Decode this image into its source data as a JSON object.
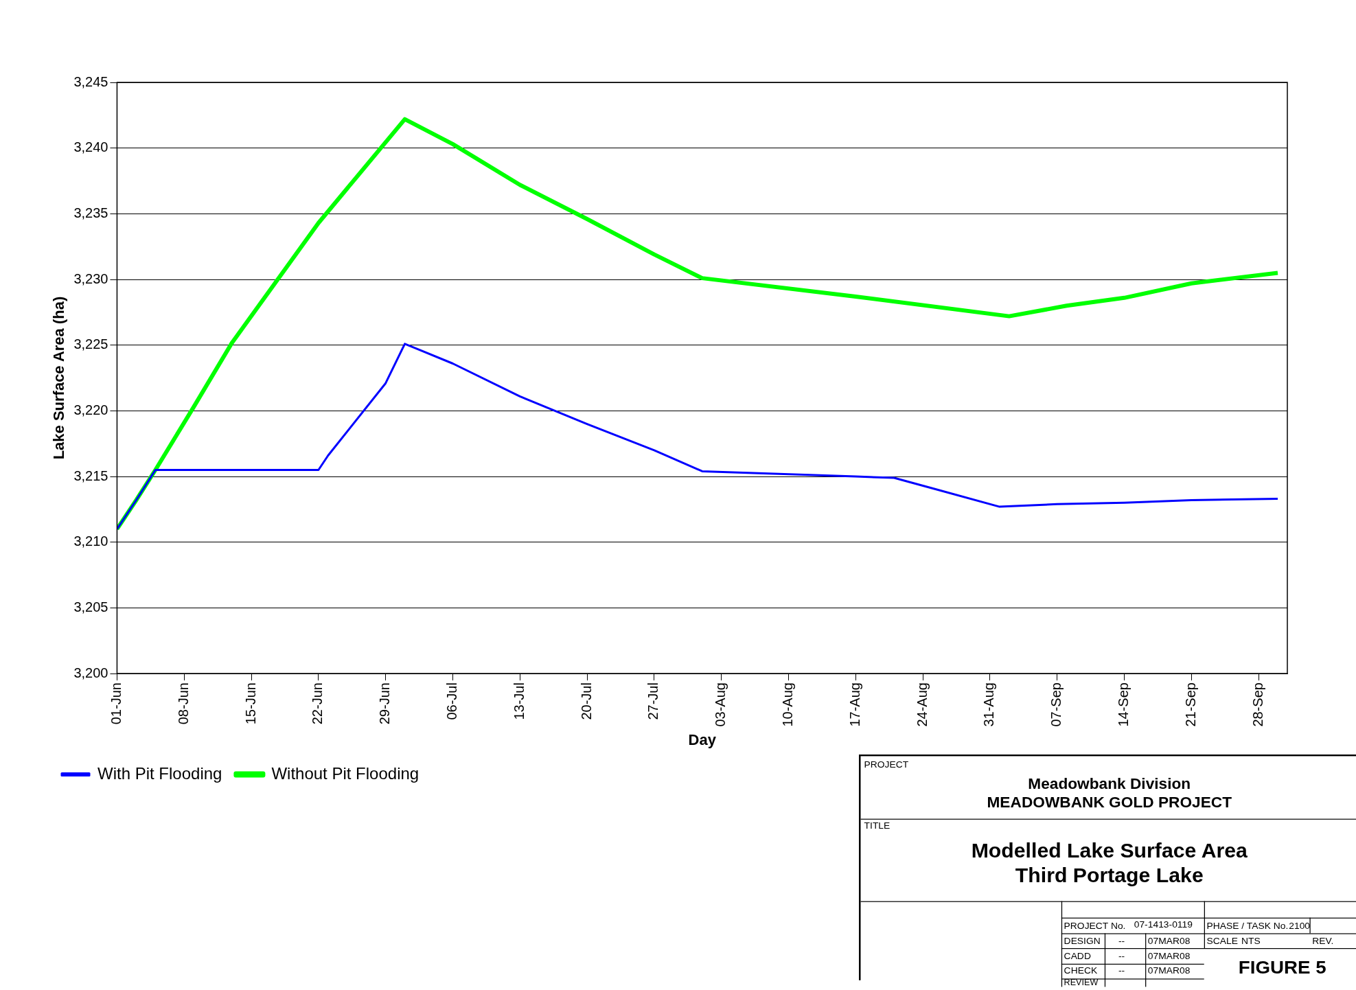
{
  "chart_data": {
    "type": "line",
    "xlabel": "Day",
    "ylabel": "Lake Surface Area (ha)",
    "xlim": [
      "--06-01",
      "--10-01"
    ],
    "xticks": [
      {
        "value": "--06-01",
        "label": "01-Jun"
      },
      {
        "value": "--06-08",
        "label": "08-Jun"
      },
      {
        "value": "--06-15",
        "label": "15-Jun"
      },
      {
        "value": "--06-22",
        "label": "22-Jun"
      },
      {
        "value": "--06-29",
        "label": "29-Jun"
      },
      {
        "value": "--07-06",
        "label": "06-Jul"
      },
      {
        "value": "--07-13",
        "label": "13-Jul"
      },
      {
        "value": "--07-20",
        "label": "20-Jul"
      },
      {
        "value": "--07-27",
        "label": "27-Jul"
      },
      {
        "value": "--08-03",
        "label": "03-Aug"
      },
      {
        "value": "--08-10",
        "label": "10-Aug"
      },
      {
        "value": "--08-17",
        "label": "17-Aug"
      },
      {
        "value": "--08-24",
        "label": "24-Aug"
      },
      {
        "value": "--08-31",
        "label": "31-Aug"
      },
      {
        "value": "--09-07",
        "label": "07-Sep"
      },
      {
        "value": "--09-14",
        "label": "14-Sep"
      },
      {
        "value": "--09-21",
        "label": "21-Sep"
      },
      {
        "value": "--09-28",
        "label": "28-Sep"
      }
    ],
    "ylim": [
      3200,
      3245
    ],
    "yticks": [
      {
        "value": 3200,
        "label": "3,200"
      },
      {
        "value": 3205,
        "label": "3,205"
      },
      {
        "value": 3210,
        "label": "3,210"
      },
      {
        "value": 3215,
        "label": "3,215"
      },
      {
        "value": 3220,
        "label": "3,220"
      },
      {
        "value": 3225,
        "label": "3,225"
      },
      {
        "value": 3230,
        "label": "3,230"
      },
      {
        "value": 3235,
        "label": "3,235"
      },
      {
        "value": 3240,
        "label": "3,240"
      },
      {
        "value": 3245,
        "label": "3,245"
      }
    ],
    "grid": "y",
    "legend": "bottom left",
    "marker": "none",
    "line_style": "solid",
    "series": [
      {
        "name": "Without Pit Flooding",
        "color": "#00ff00",
        "x": [
          "--06-01",
          "--06-03",
          "--06-05",
          "--06-09",
          "--06-13",
          "--06-22",
          "--07-01",
          "--07-06",
          "--07-13",
          "--07-20",
          "--07-27",
          "--08-01",
          "--08-17",
          "--09-02",
          "--09-08",
          "--09-14",
          "--09-21",
          "--09-30"
        ],
        "values": [
          3211.0,
          3213.2,
          3215.5,
          3220.3,
          3225.2,
          3234.3,
          3242.2,
          3240.3,
          3237.2,
          3234.6,
          3231.9,
          3230.1,
          3228.7,
          3227.2,
          3228.0,
          3228.6,
          3229.7,
          3230.5
        ]
      },
      {
        "name": "With Pit Flooding",
        "color": "#0000ff",
        "x": [
          "--06-01",
          "--06-03",
          "--06-05",
          "--06-22",
          "--06-23",
          "--06-29",
          "--07-01",
          "--07-06",
          "--07-13",
          "--07-20",
          "--07-27",
          "--08-01",
          "--08-17",
          "--08-21",
          "--08-25",
          "--09-01",
          "--09-07",
          "--09-14",
          "--09-21",
          "--09-30"
        ],
        "values": [
          3211.0,
          3213.2,
          3215.5,
          3215.5,
          3216.6,
          3222.1,
          3225.1,
          3223.6,
          3221.1,
          3219.0,
          3217.0,
          3215.4,
          3215.0,
          3214.9,
          3214.1,
          3212.7,
          3212.9,
          3213.0,
          3213.2,
          3213.3
        ]
      }
    ],
    "annotations": [
      "PROJECT",
      "Meadowbank Division",
      "MEADOWBANK GOLD PROJECT",
      "TITLE",
      "Modelled Lake Surface Area",
      "Third Portage Lake",
      "PROJECT No.",
      "07-1413-0119",
      "PHASE / TASK No.",
      "2100",
      "DESIGN",
      "--",
      "07MAR08",
      "SCALE",
      "NTS",
      "REV.",
      "CADD",
      "--",
      "07MAR08",
      "CHECK",
      "--",
      "07MAR08",
      "FIGURE 5",
      "REVIEW"
    ]
  }
}
